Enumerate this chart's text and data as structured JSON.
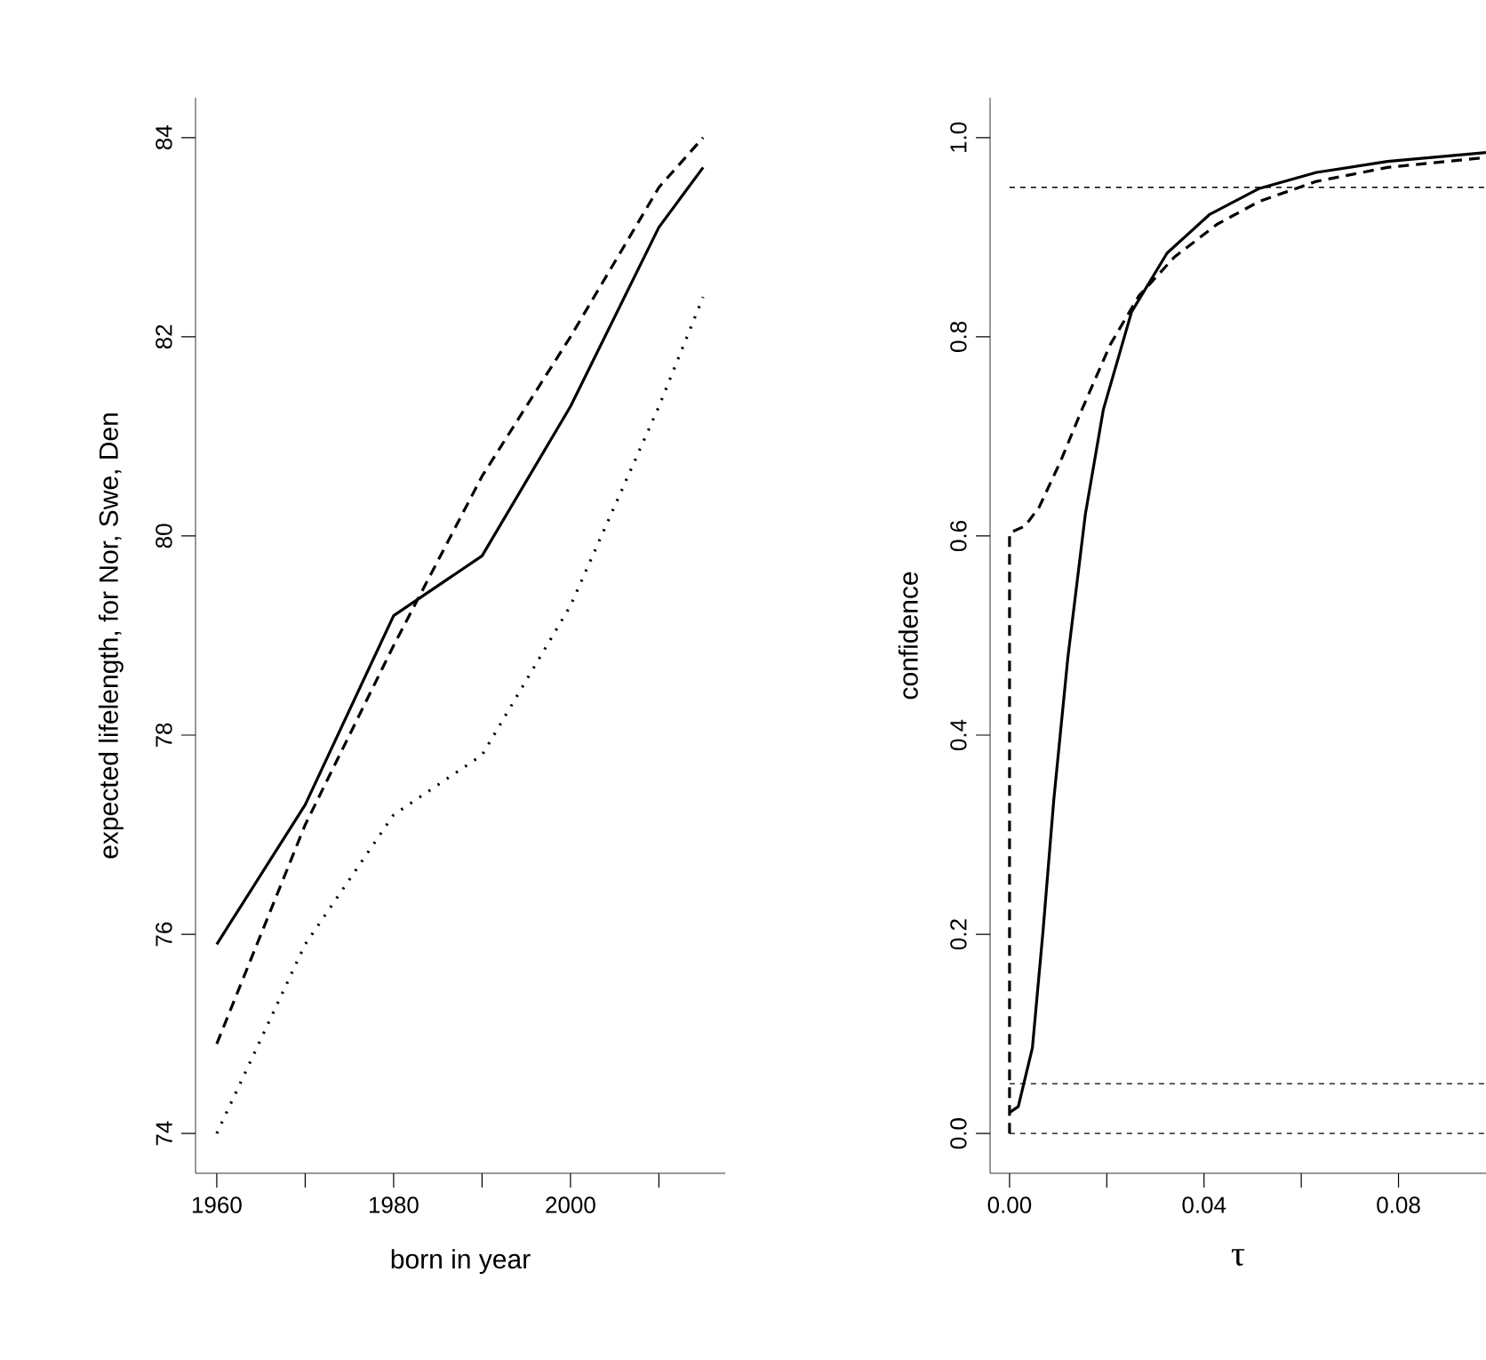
{
  "chart_data": [
    {
      "type": "line",
      "xlabel": "born in year",
      "ylabel": "expected lifelength, for Nor, Swe, Den",
      "x": [
        1960,
        1970,
        1980,
        1990,
        2000,
        2010,
        2015
      ],
      "series": [
        {
          "color": "#000000",
          "line_style": "solid",
          "values": [
            75.9,
            77.3,
            79.2,
            79.8,
            81.3,
            83.1,
            83.7
          ]
        },
        {
          "color": "#000000",
          "line_style": "dashed",
          "values": [
            74.9,
            77.1,
            78.9,
            80.6,
            82.0,
            83.5,
            84.0
          ]
        },
        {
          "color": "#000000",
          "line_style": "dotted",
          "values": [
            74.0,
            75.9,
            77.2,
            77.8,
            79.3,
            81.3,
            82.4
          ]
        }
      ],
      "xlim": [
        1957.6,
        2017.5
      ],
      "ylim": [
        73.6,
        84.4
      ],
      "xticks": [
        1960,
        {
          "value": 1970,
          "label": null
        },
        1980,
        {
          "value": 1990,
          "label": null
        },
        2000,
        {
          "value": 2010,
          "label": null
        }
      ],
      "yticks": [
        74,
        76,
        78,
        80,
        82,
        84
      ]
    },
    {
      "type": "line",
      "xlabel": "τ",
      "ylabel": "confidence",
      "series": [
        {
          "color": "#000000",
          "line_style": "solid",
          "x": [
            0,
            0.0018,
            0.0047,
            0.0069,
            0.0091,
            0.012,
            0.0156,
            0.0193,
            0.0251,
            0.0324,
            0.0412,
            0.0514,
            0.0631,
            0.0777,
            0.098
          ],
          "values": [
            0.021,
            0.027,
            0.086,
            0.204,
            0.335,
            0.478,
            0.622,
            0.727,
            0.825,
            0.884,
            0.923,
            0.949,
            0.965,
            0.976,
            0.985
          ]
        },
        {
          "color": "#000000",
          "line_style": "dashed",
          "x": [
            0,
            0,
            0.0032,
            0.0061,
            0.0105,
            0.0149,
            0.0207,
            0.0266,
            0.0339,
            0.0427,
            0.0514,
            0.0631,
            0.0777,
            0.098
          ],
          "values": [
            0,
            0.603,
            0.61,
            0.629,
            0.675,
            0.727,
            0.792,
            0.841,
            0.88,
            0.913,
            0.936,
            0.956,
            0.97,
            0.98
          ]
        }
      ],
      "ref_lines": [
        {
          "axis": "y",
          "value": 0,
          "color": "#000000",
          "line_style": "dashed"
        },
        {
          "axis": "y",
          "value": 0.05,
          "color": "#000000",
          "line_style": "dashed"
        },
        {
          "axis": "y",
          "value": 0.95,
          "color": "#000000",
          "line_style": "dashed"
        }
      ],
      "xlim": [
        -0.004,
        0.098
      ],
      "ylim": [
        -0.04,
        1.04
      ],
      "xticks": [
        {
          "value": 0,
          "label": "0.00"
        },
        {
          "value": 0.02,
          "label": null
        },
        {
          "value": 0.04,
          "label": "0.04"
        },
        {
          "value": 0.06,
          "label": null
        },
        {
          "value": 0.08,
          "label": "0.08"
        }
      ],
      "yticks": [
        {
          "value": 0,
          "label": "0.0"
        },
        {
          "value": 0.2,
          "label": "0.2"
        },
        {
          "value": 0.4,
          "label": "0.4"
        },
        {
          "value": 0.6,
          "label": "0.6"
        },
        {
          "value": 0.8,
          "label": "0.8"
        },
        {
          "value": 1.0,
          "label": "1.0"
        }
      ]
    }
  ]
}
